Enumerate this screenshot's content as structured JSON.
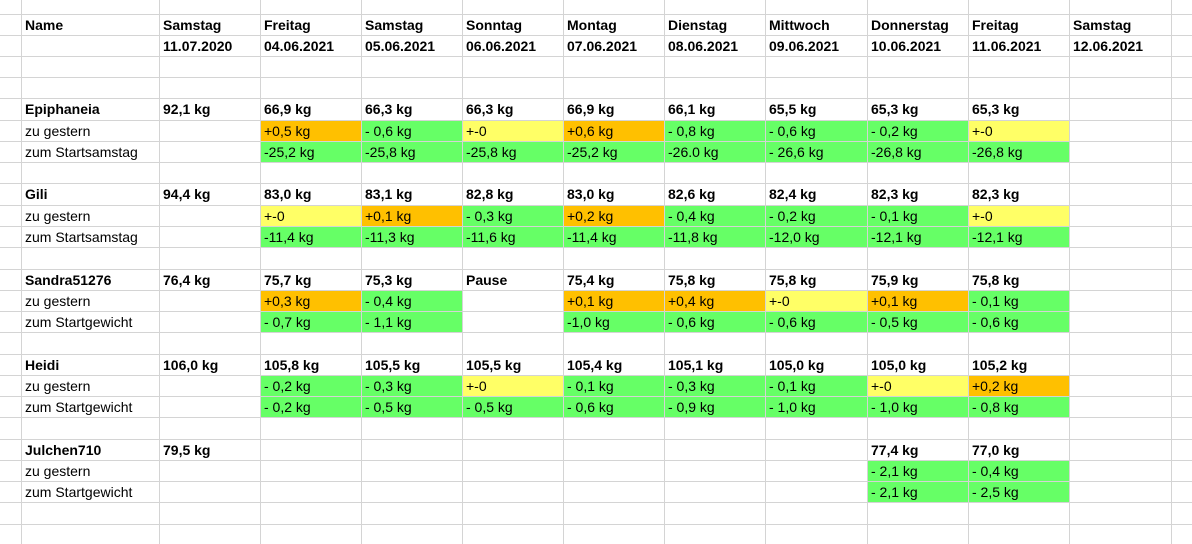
{
  "colors": {
    "increase": "#ffc000",
    "unchanged": "#ffff66",
    "decrease": "#66ff66",
    "grid": "#d4d4d4"
  },
  "header": {
    "name_label": "Name",
    "columns": [
      {
        "day": "Samstag",
        "date": "11.07.2020"
      },
      {
        "day": "Freitag",
        "date": "04.06.2021"
      },
      {
        "day": "Samstag",
        "date": "05.06.2021"
      },
      {
        "day": "Sonntag",
        "date": "06.06.2021"
      },
      {
        "day": "Montag",
        "date": "07.06.2021"
      },
      {
        "day": "Dienstag",
        "date": "08.06.2021"
      },
      {
        "day": "Mittwoch",
        "date": "09.06.2021"
      },
      {
        "day": "Donnerstag",
        "date": "10.06.2021"
      },
      {
        "day": "Freitag",
        "date": "11.06.2021"
      },
      {
        "day": "Samstag",
        "date": "12.06.2021"
      }
    ]
  },
  "persons": [
    {
      "name": "Epiphaneia",
      "weights": [
        "92,1 kg",
        "66,9 kg",
        "66,3 kg",
        "66,3 kg",
        "66,9 kg",
        "66,1 kg",
        "65,5 kg",
        "65,3 kg",
        "65,3 kg",
        ""
      ],
      "delta_label": "zu gestern",
      "deltas": [
        {
          "v": "",
          "c": ""
        },
        {
          "v": "+0,5 kg",
          "c": "orange"
        },
        {
          "v": "- 0,6 kg",
          "c": "green"
        },
        {
          "v": "+-0",
          "c": "yellow"
        },
        {
          "v": "+0,6 kg",
          "c": "orange"
        },
        {
          "v": "- 0,8 kg",
          "c": "green"
        },
        {
          "v": "- 0,6 kg",
          "c": "green"
        },
        {
          "v": "- 0,2 kg",
          "c": "green"
        },
        {
          "v": "+-0",
          "c": "yellow"
        },
        {
          "v": "",
          "c": ""
        }
      ],
      "total_label": "zum Startsamstag",
      "totals": [
        {
          "v": "",
          "c": ""
        },
        {
          "v": "-25,2 kg",
          "c": "green"
        },
        {
          "v": "-25,8 kg",
          "c": "green"
        },
        {
          "v": "-25,8 kg",
          "c": "green"
        },
        {
          "v": "-25,2 kg",
          "c": "green"
        },
        {
          "v": "-26.0 kg",
          "c": "green"
        },
        {
          "v": "- 26,6 kg",
          "c": "green"
        },
        {
          "v": "-26,8 kg",
          "c": "green"
        },
        {
          "v": "-26,8 kg",
          "c": "green"
        },
        {
          "v": "",
          "c": ""
        }
      ]
    },
    {
      "name": "Gili",
      "weights": [
        "94,4 kg",
        "83,0 kg",
        "83,1 kg",
        "82,8 kg",
        "83,0 kg",
        "82,6 kg",
        "82,4 kg",
        "82,3 kg",
        "82,3 kg",
        ""
      ],
      "delta_label": "zu gestern",
      "deltas": [
        {
          "v": "",
          "c": ""
        },
        {
          "v": "+-0",
          "c": "yellow"
        },
        {
          "v": "+0,1 kg",
          "c": "orange"
        },
        {
          "v": "- 0,3 kg",
          "c": "green"
        },
        {
          "v": "+0,2 kg",
          "c": "orange"
        },
        {
          "v": "- 0,4 kg",
          "c": "green"
        },
        {
          "v": "- 0,2 kg",
          "c": "green"
        },
        {
          "v": "- 0,1 kg",
          "c": "green"
        },
        {
          "v": "+-0",
          "c": "yellow"
        },
        {
          "v": "",
          "c": ""
        }
      ],
      "total_label": "zum Startsamstag",
      "totals": [
        {
          "v": "",
          "c": ""
        },
        {
          "v": "-11,4 kg",
          "c": "green"
        },
        {
          "v": "-11,3 kg",
          "c": "green"
        },
        {
          "v": "-11,6 kg",
          "c": "green"
        },
        {
          "v": "-11,4 kg",
          "c": "green"
        },
        {
          "v": "-11,8 kg",
          "c": "green"
        },
        {
          "v": "-12,0 kg",
          "c": "green"
        },
        {
          "v": "-12,1 kg",
          "c": "green"
        },
        {
          "v": "-12,1 kg",
          "c": "green"
        },
        {
          "v": "",
          "c": ""
        }
      ]
    },
    {
      "name": "Sandra51276",
      "weights": [
        "76,4 kg",
        "75,7 kg",
        "75,3 kg",
        "Pause",
        "75,4 kg",
        "75,8 kg",
        "75,8 kg",
        "75,9 kg",
        "75,8 kg",
        ""
      ],
      "delta_label": "zu gestern",
      "deltas": [
        {
          "v": "",
          "c": ""
        },
        {
          "v": "+0,3 kg",
          "c": "orange"
        },
        {
          "v": "- 0,4 kg",
          "c": "green"
        },
        {
          "v": "",
          "c": ""
        },
        {
          "v": "+0,1 kg",
          "c": "orange"
        },
        {
          "v": "+0,4 kg",
          "c": "orange"
        },
        {
          "v": "+-0",
          "c": "yellow"
        },
        {
          "v": "+0,1 kg",
          "c": "orange"
        },
        {
          "v": "- 0,1 kg",
          "c": "green"
        },
        {
          "v": "",
          "c": ""
        }
      ],
      "total_label": "zum Startgewicht",
      "totals": [
        {
          "v": "",
          "c": ""
        },
        {
          "v": "- 0,7 kg",
          "c": "green"
        },
        {
          "v": "- 1,1 kg",
          "c": "green"
        },
        {
          "v": "",
          "c": ""
        },
        {
          "v": "-1,0 kg",
          "c": "green"
        },
        {
          "v": "- 0,6 kg",
          "c": "green"
        },
        {
          "v": "- 0,6 kg",
          "c": "green"
        },
        {
          "v": "- 0,5 kg",
          "c": "green"
        },
        {
          "v": "- 0,6 kg",
          "c": "green"
        },
        {
          "v": "",
          "c": ""
        }
      ]
    },
    {
      "name": "Heidi",
      "weights": [
        "106,0 kg",
        "105,8 kg",
        "105,5 kg",
        "105,5 kg",
        "105,4 kg",
        "105,1 kg",
        "105,0 kg",
        "105,0 kg",
        "105,2  kg",
        ""
      ],
      "delta_label": "zu gestern",
      "deltas": [
        {
          "v": "",
          "c": ""
        },
        {
          "v": "- 0,2 kg",
          "c": "green"
        },
        {
          "v": "- 0,3 kg",
          "c": "green"
        },
        {
          "v": "+-0",
          "c": "yellow"
        },
        {
          "v": "- 0,1 kg",
          "c": "green"
        },
        {
          "v": "- 0,3 kg",
          "c": "green"
        },
        {
          "v": "- 0,1 kg",
          "c": "green"
        },
        {
          "v": "+-0",
          "c": "yellow"
        },
        {
          "v": "+0,2 kg",
          "c": "orange"
        },
        {
          "v": "",
          "c": ""
        }
      ],
      "total_label": "zum Startgewicht",
      "totals": [
        {
          "v": "",
          "c": ""
        },
        {
          "v": "- 0,2 kg",
          "c": "green"
        },
        {
          "v": "- 0,5 kg",
          "c": "green"
        },
        {
          "v": "- 0,5 kg",
          "c": "green"
        },
        {
          "v": "- 0,6 kg",
          "c": "green"
        },
        {
          "v": "- 0,9 kg",
          "c": "green"
        },
        {
          "v": "- 1,0 kg",
          "c": "green"
        },
        {
          "v": "- 1,0 kg",
          "c": "green"
        },
        {
          "v": "- 0,8 kg",
          "c": "green"
        },
        {
          "v": "",
          "c": ""
        }
      ]
    },
    {
      "name": "Julchen710",
      "weights": [
        "79,5 kg",
        "",
        "",
        "",
        "",
        "",
        "",
        "77,4 kg",
        "77,0 kg",
        ""
      ],
      "delta_label": "zu gestern",
      "deltas": [
        {
          "v": "",
          "c": ""
        },
        {
          "v": "",
          "c": ""
        },
        {
          "v": "",
          "c": ""
        },
        {
          "v": "",
          "c": ""
        },
        {
          "v": "",
          "c": ""
        },
        {
          "v": "",
          "c": ""
        },
        {
          "v": "",
          "c": ""
        },
        {
          "v": "- 2,1 kg",
          "c": "green"
        },
        {
          "v": "- 0,4 kg",
          "c": "green"
        },
        {
          "v": "",
          "c": ""
        }
      ],
      "total_label": "zum Startgewicht",
      "totals": [
        {
          "v": "",
          "c": ""
        },
        {
          "v": "",
          "c": ""
        },
        {
          "v": "",
          "c": ""
        },
        {
          "v": "",
          "c": ""
        },
        {
          "v": "",
          "c": ""
        },
        {
          "v": "",
          "c": ""
        },
        {
          "v": "",
          "c": ""
        },
        {
          "v": "- 2,1 kg",
          "c": "green"
        },
        {
          "v": "- 2,5 kg",
          "c": "green"
        },
        {
          "v": "",
          "c": ""
        }
      ]
    }
  ]
}
